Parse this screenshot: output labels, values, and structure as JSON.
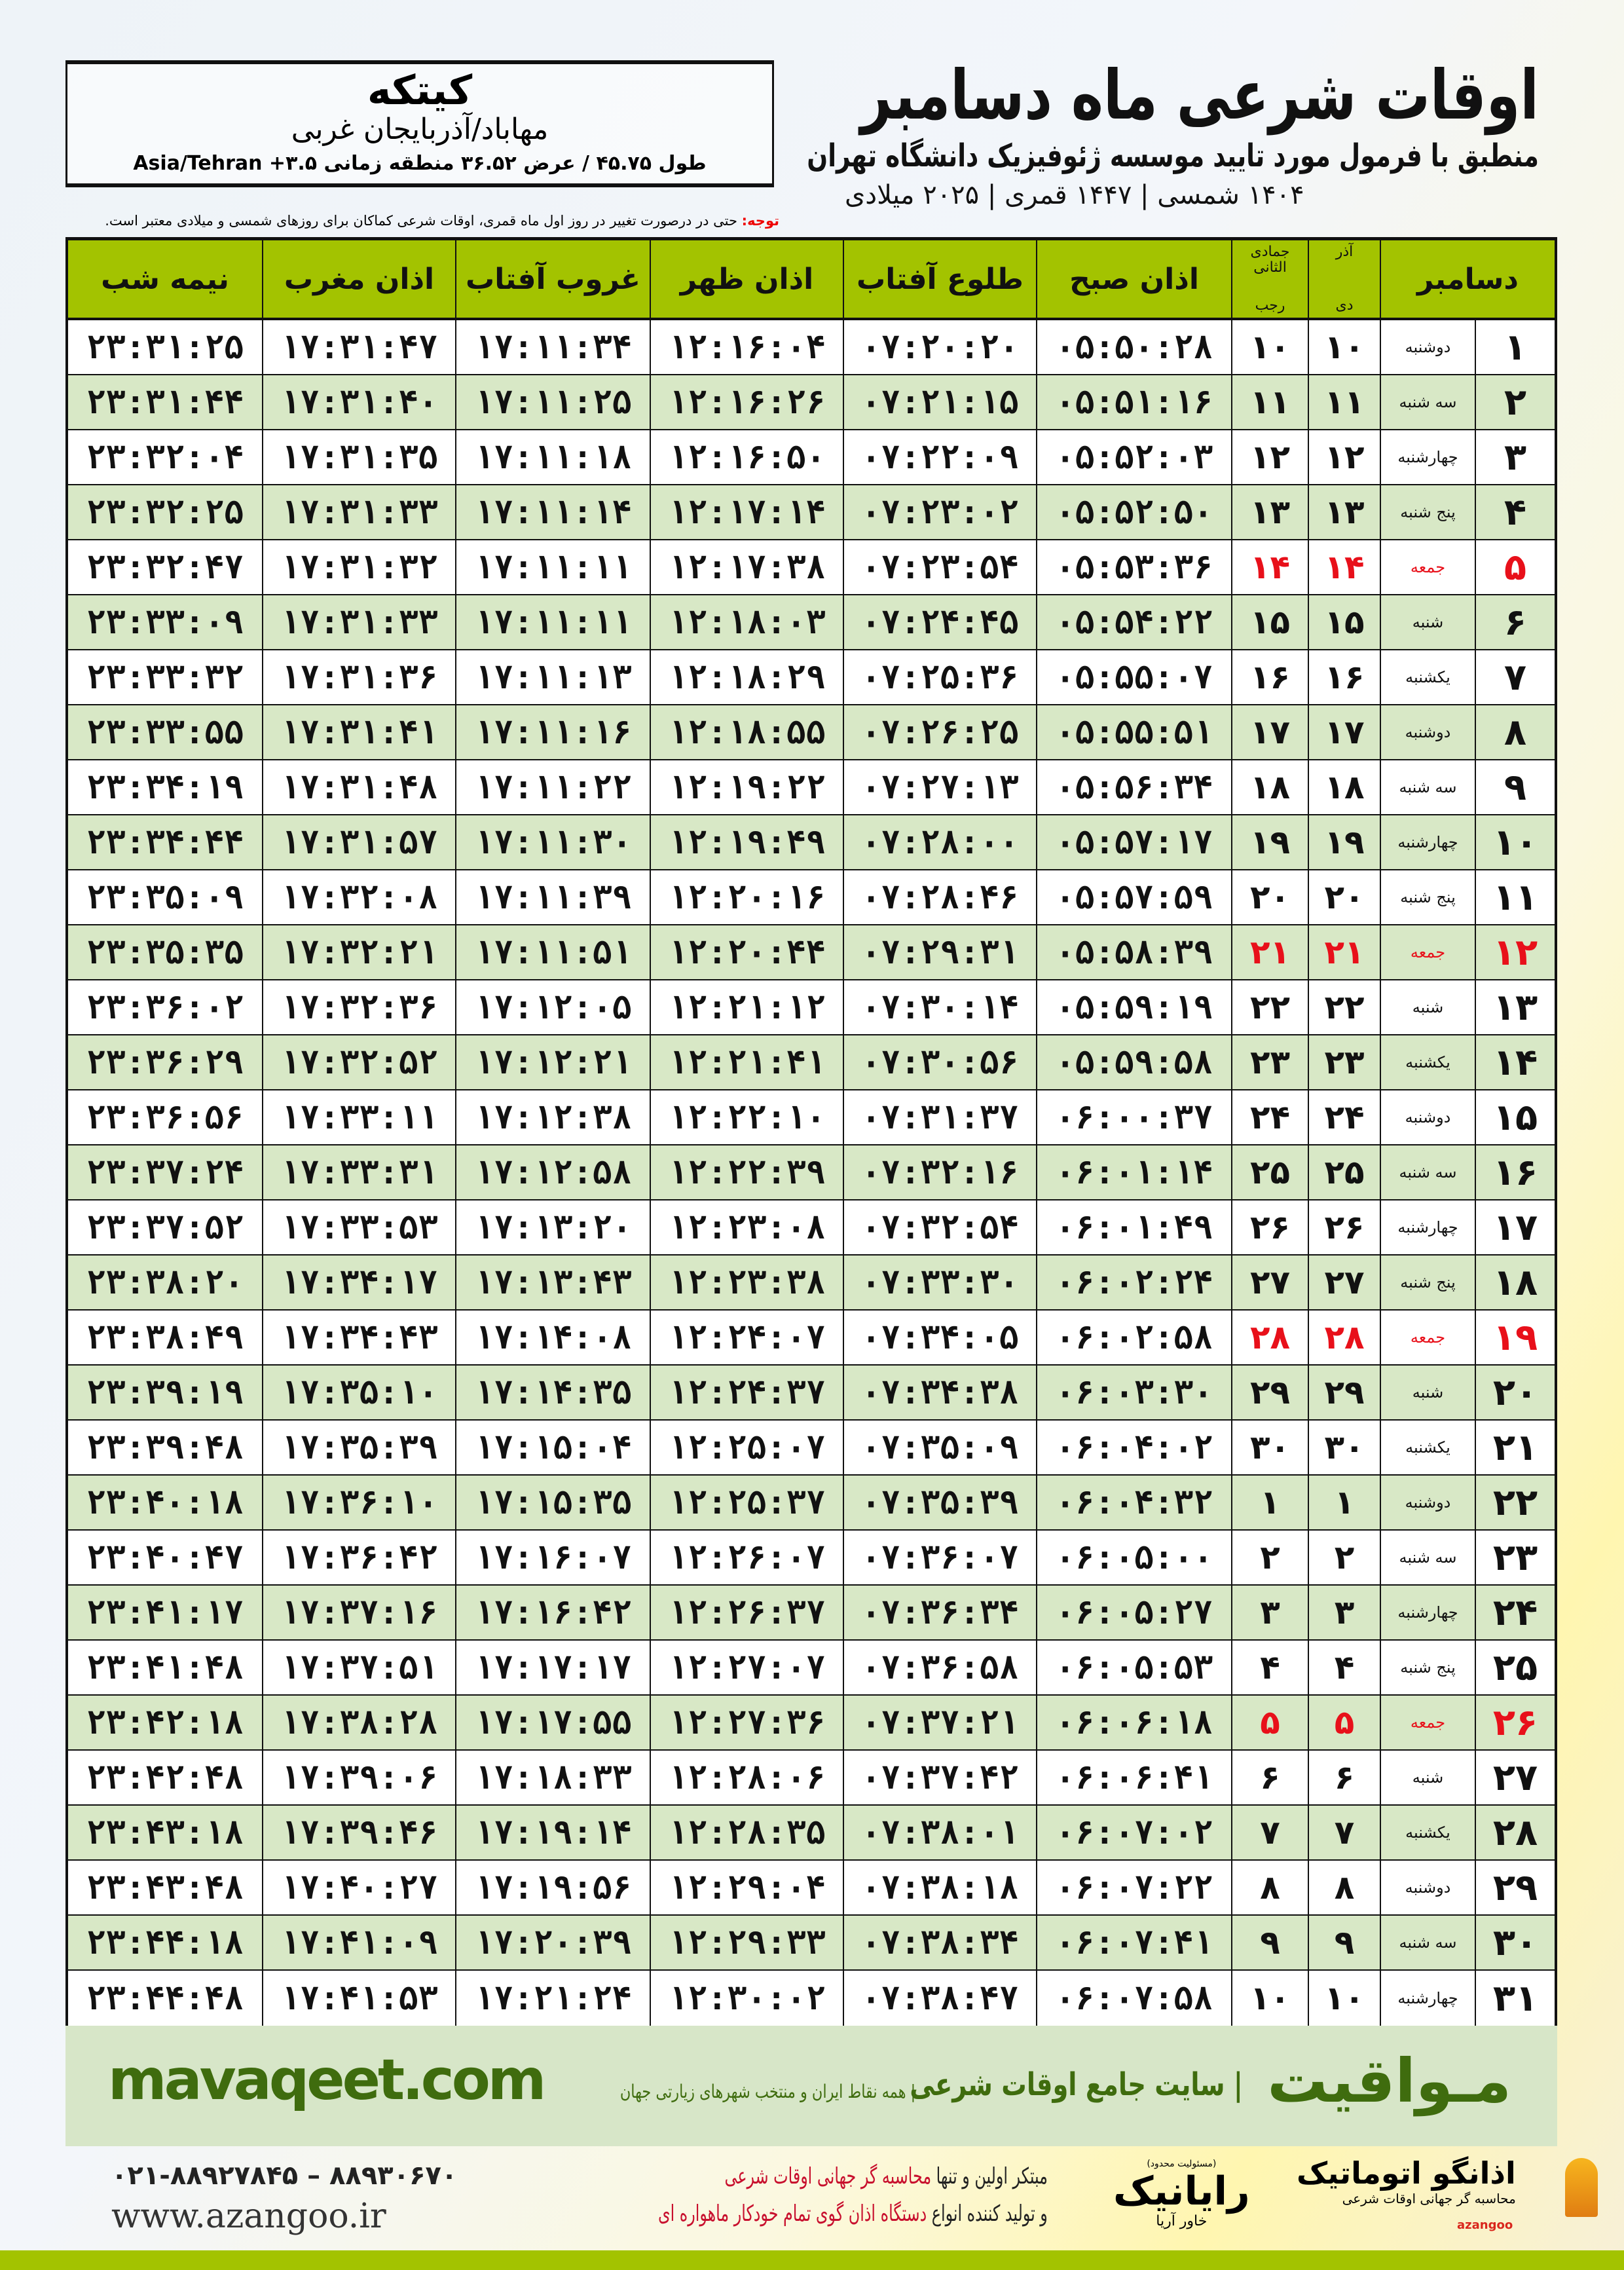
{
  "header": {
    "title": "اوقات شرعی ماه دسامبر",
    "subtitle": "منطبق با فرمول مورد تایید موسسه ژئوفیزیک دانشگاه تهران",
    "dateline": "۱۴۰۴ شمسی | ۱۴۴۷ قمری | ۲۰۲۵ میلادی"
  },
  "location": {
    "city": "کیتکه",
    "province": "مهاباد/آذربایجان غربی",
    "coords": "طول ۴۵.۷۵ / عرض ۳۶.۵۲ منطقه زمانی ۳.۵+ Asia/Tehran"
  },
  "note": {
    "label": "توجه:",
    "text": " حتی در درصورت تغییر در روز اول ماه قمری، اوقات شرعی کماکان برای روزهای شمسی و میلادی معتبر است."
  },
  "table": {
    "headers": {
      "nimeh": "نیمه شب",
      "maghreb": "اذان مغرب",
      "ghoroob": "غروب آفتاب",
      "zohr": "اذان ظهر",
      "tolu": "طلوع آفتاب",
      "sobh": "اذان صبح",
      "hijri_top": "جمادی الثانی",
      "hijri_bottom": "رجب",
      "shamsi_top": "آذر",
      "shamsi_bottom": "دی",
      "month": "دسامبر"
    },
    "red_color": "#e8101a",
    "green_row": "#d8e8c6",
    "header_color": "#a3c300",
    "rows": [
      [
        "۱",
        "دوشنبه",
        "۱۰",
        "۱۰",
        "۰۵:۵۰:۲۸",
        "۰۷:۲۰:۲۰",
        "۱۲:۱۶:۰۴",
        "۱۷:۱۱:۳۴",
        "۱۷:۳۱:۴۷",
        "۲۳:۳۱:۲۵",
        false
      ],
      [
        "۲",
        "سه شنبه",
        "۱۱",
        "۱۱",
        "۰۵:۵۱:۱۶",
        "۰۷:۲۱:۱۵",
        "۱۲:۱۶:۲۶",
        "۱۷:۱۱:۲۵",
        "۱۷:۳۱:۴۰",
        "۲۳:۳۱:۴۴",
        false
      ],
      [
        "۳",
        "چهارشنبه",
        "۱۲",
        "۱۲",
        "۰۵:۵۲:۰۳",
        "۰۷:۲۲:۰۹",
        "۱۲:۱۶:۵۰",
        "۱۷:۱۱:۱۸",
        "۱۷:۳۱:۳۵",
        "۲۳:۳۲:۰۴",
        false
      ],
      [
        "۴",
        "پنج شنبه",
        "۱۳",
        "۱۳",
        "۰۵:۵۲:۵۰",
        "۰۷:۲۳:۰۲",
        "۱۲:۱۷:۱۴",
        "۱۷:۱۱:۱۴",
        "۱۷:۳۱:۳۳",
        "۲۳:۳۲:۲۵",
        false
      ],
      [
        "۵",
        "جمعه",
        "۱۴",
        "۱۴",
        "۰۵:۵۳:۳۶",
        "۰۷:۲۳:۵۴",
        "۱۲:۱۷:۳۸",
        "۱۷:۱۱:۱۱",
        "۱۷:۳۱:۳۲",
        "۲۳:۳۲:۴۷",
        true
      ],
      [
        "۶",
        "شنبه",
        "۱۵",
        "۱۵",
        "۰۵:۵۴:۲۲",
        "۰۷:۲۴:۴۵",
        "۱۲:۱۸:۰۳",
        "۱۷:۱۱:۱۱",
        "۱۷:۳۱:۳۳",
        "۲۳:۳۳:۰۹",
        false
      ],
      [
        "۷",
        "یکشنبه",
        "۱۶",
        "۱۶",
        "۰۵:۵۵:۰۷",
        "۰۷:۲۵:۳۶",
        "۱۲:۱۸:۲۹",
        "۱۷:۱۱:۱۳",
        "۱۷:۳۱:۳۶",
        "۲۳:۳۳:۳۲",
        false
      ],
      [
        "۸",
        "دوشنبه",
        "۱۷",
        "۱۷",
        "۰۵:۵۵:۵۱",
        "۰۷:۲۶:۲۵",
        "۱۲:۱۸:۵۵",
        "۱۷:۱۱:۱۶",
        "۱۷:۳۱:۴۱",
        "۲۳:۳۳:۵۵",
        false
      ],
      [
        "۹",
        "سه شنبه",
        "۱۸",
        "۱۸",
        "۰۵:۵۶:۳۴",
        "۰۷:۲۷:۱۳",
        "۱۲:۱۹:۲۲",
        "۱۷:۱۱:۲۲",
        "۱۷:۳۱:۴۸",
        "۲۳:۳۴:۱۹",
        false
      ],
      [
        "۱۰",
        "چهارشنبه",
        "۱۹",
        "۱۹",
        "۰۵:۵۷:۱۷",
        "۰۷:۲۸:۰۰",
        "۱۲:۱۹:۴۹",
        "۱۷:۱۱:۳۰",
        "۱۷:۳۱:۵۷",
        "۲۳:۳۴:۴۴",
        false
      ],
      [
        "۱۱",
        "پنج شنبه",
        "۲۰",
        "۲۰",
        "۰۵:۵۷:۵۹",
        "۰۷:۲۸:۴۶",
        "۱۲:۲۰:۱۶",
        "۱۷:۱۱:۳۹",
        "۱۷:۳۲:۰۸",
        "۲۳:۳۵:۰۹",
        false
      ],
      [
        "۱۲",
        "جمعه",
        "۲۱",
        "۲۱",
        "۰۵:۵۸:۳۹",
        "۰۷:۲۹:۳۱",
        "۱۲:۲۰:۴۴",
        "۱۷:۱۱:۵۱",
        "۱۷:۳۲:۲۱",
        "۲۳:۳۵:۳۵",
        true
      ],
      [
        "۱۳",
        "شنبه",
        "۲۲",
        "۲۲",
        "۰۵:۵۹:۱۹",
        "۰۷:۳۰:۱۴",
        "۱۲:۲۱:۱۲",
        "۱۷:۱۲:۰۵",
        "۱۷:۳۲:۳۶",
        "۲۳:۳۶:۰۲",
        false
      ],
      [
        "۱۴",
        "یکشنبه",
        "۲۳",
        "۲۳",
        "۰۵:۵۹:۵۸",
        "۰۷:۳۰:۵۶",
        "۱۲:۲۱:۴۱",
        "۱۷:۱۲:۲۱",
        "۱۷:۳۲:۵۲",
        "۲۳:۳۶:۲۹",
        false
      ],
      [
        "۱۵",
        "دوشنبه",
        "۲۴",
        "۲۴",
        "۰۶:۰۰:۳۷",
        "۰۷:۳۱:۳۷",
        "۱۲:۲۲:۱۰",
        "۱۷:۱۲:۳۸",
        "۱۷:۳۳:۱۱",
        "۲۳:۳۶:۵۶",
        false
      ],
      [
        "۱۶",
        "سه شنبه",
        "۲۵",
        "۲۵",
        "۰۶:۰۱:۱۴",
        "۰۷:۳۲:۱۶",
        "۱۲:۲۲:۳۹",
        "۱۷:۱۲:۵۸",
        "۱۷:۳۳:۳۱",
        "۲۳:۳۷:۲۴",
        false
      ],
      [
        "۱۷",
        "چهارشنبه",
        "۲۶",
        "۲۶",
        "۰۶:۰۱:۴۹",
        "۰۷:۳۲:۵۴",
        "۱۲:۲۳:۰۸",
        "۱۷:۱۳:۲۰",
        "۱۷:۳۳:۵۳",
        "۲۳:۳۷:۵۲",
        false
      ],
      [
        "۱۸",
        "پنج شنبه",
        "۲۷",
        "۲۷",
        "۰۶:۰۲:۲۴",
        "۰۷:۳۳:۳۰",
        "۱۲:۲۳:۳۸",
        "۱۷:۱۳:۴۳",
        "۱۷:۳۴:۱۷",
        "۲۳:۳۸:۲۰",
        false
      ],
      [
        "۱۹",
        "جمعه",
        "۲۸",
        "۲۸",
        "۰۶:۰۲:۵۸",
        "۰۷:۳۴:۰۵",
        "۱۲:۲۴:۰۷",
        "۱۷:۱۴:۰۸",
        "۱۷:۳۴:۴۳",
        "۲۳:۳۸:۴۹",
        true
      ],
      [
        "۲۰",
        "شنبه",
        "۲۹",
        "۲۹",
        "۰۶:۰۳:۳۰",
        "۰۷:۳۴:۳۸",
        "۱۲:۲۴:۳۷",
        "۱۷:۱۴:۳۵",
        "۱۷:۳۵:۱۰",
        "۲۳:۳۹:۱۹",
        false
      ],
      [
        "۲۱",
        "یکشنبه",
        "۳۰",
        "۳۰",
        "۰۶:۰۴:۰۲",
        "۰۷:۳۵:۰۹",
        "۱۲:۲۵:۰۷",
        "۱۷:۱۵:۰۴",
        "۱۷:۳۵:۳۹",
        "۲۳:۳۹:۴۸",
        false
      ],
      [
        "۲۲",
        "دوشنبه",
        "۱",
        "۱",
        "۰۶:۰۴:۳۲",
        "۰۷:۳۵:۳۹",
        "۱۲:۲۵:۳۷",
        "۱۷:۱۵:۳۵",
        "۱۷:۳۶:۱۰",
        "۲۳:۴۰:۱۸",
        false
      ],
      [
        "۲۳",
        "سه شنبه",
        "۲",
        "۲",
        "۰۶:۰۵:۰۰",
        "۰۷:۳۶:۰۷",
        "۱۲:۲۶:۰۷",
        "۱۷:۱۶:۰۷",
        "۱۷:۳۶:۴۲",
        "۲۳:۴۰:۴۷",
        false
      ],
      [
        "۲۴",
        "چهارشنبه",
        "۳",
        "۳",
        "۰۶:۰۵:۲۷",
        "۰۷:۳۶:۳۴",
        "۱۲:۲۶:۳۷",
        "۱۷:۱۶:۴۲",
        "۱۷:۳۷:۱۶",
        "۲۳:۴۱:۱۷",
        false
      ],
      [
        "۲۵",
        "پنج شنبه",
        "۴",
        "۴",
        "۰۶:۰۵:۵۳",
        "۰۷:۳۶:۵۸",
        "۱۲:۲۷:۰۷",
        "۱۷:۱۷:۱۷",
        "۱۷:۳۷:۵۱",
        "۲۳:۴۱:۴۸",
        false
      ],
      [
        "۲۶",
        "جمعه",
        "۵",
        "۵",
        "۰۶:۰۶:۱۸",
        "۰۷:۳۷:۲۱",
        "۱۲:۲۷:۳۶",
        "۱۷:۱۷:۵۵",
        "۱۷:۳۸:۲۸",
        "۲۳:۴۲:۱۸",
        true
      ],
      [
        "۲۷",
        "شنبه",
        "۶",
        "۶",
        "۰۶:۰۶:۴۱",
        "۰۷:۳۷:۴۲",
        "۱۲:۲۸:۰۶",
        "۱۷:۱۸:۳۳",
        "۱۷:۳۹:۰۶",
        "۲۳:۴۲:۴۸",
        false
      ],
      [
        "۲۸",
        "یکشنبه",
        "۷",
        "۷",
        "۰۶:۰۷:۰۲",
        "۰۷:۳۸:۰۱",
        "۱۲:۲۸:۳۵",
        "۱۷:۱۹:۱۴",
        "۱۷:۳۹:۴۶",
        "۲۳:۴۳:۱۸",
        false
      ],
      [
        "۲۹",
        "دوشنبه",
        "۸",
        "۸",
        "۰۶:۰۷:۲۲",
        "۰۷:۳۸:۱۸",
        "۱۲:۲۹:۰۴",
        "۱۷:۱۹:۵۶",
        "۱۷:۴۰:۲۷",
        "۲۳:۴۳:۴۸",
        false
      ],
      [
        "۳۰",
        "سه شنبه",
        "۹",
        "۹",
        "۰۶:۰۷:۴۱",
        "۰۷:۳۸:۳۴",
        "۱۲:۲۹:۳۳",
        "۱۷:۲۰:۳۹",
        "۱۷:۴۱:۰۹",
        "۲۳:۴۴:۱۸",
        false
      ],
      [
        "۳۱",
        "چهارشنبه",
        "۱۰",
        "۱۰",
        "۰۶:۰۷:۵۸",
        "۰۷:۳۸:۴۷",
        "۱۲:۳۰:۰۲",
        "۱۷:۲۱:۲۴",
        "۱۷:۴۱:۵۳",
        "۲۳:۴۴:۴۸",
        false
      ]
    ]
  },
  "footer": {
    "brand": "مـواقیت",
    "slogan": "| سایت جامع اوقات شرعی",
    "slogan2": "| همه نقاط ایران و منتخب شهرهای زیارتی جهان",
    "site": "mavaqeet.com",
    "phone": "۰۲۱-۸۸۹۲۷۸۴۵ – ۸۸۹۳۰۶۷۰",
    "web": "www.azangoo.ir",
    "ad1_a": "مبتکر اولین و تنها ",
    "ad1_b": "محاسبه گر جهانی اوقات شرعی",
    "ad2_a": "و تولید کننده انواع ",
    "ad2_b": "دستگاه اذان گوی تمام خودکار ماهواره ای",
    "rayanik_small": "(مسئولیت محدود)",
    "rayanik": "رایانیک",
    "rayanik_sub": "خاور آریا",
    "azangoo": "اذانگو اتوماتیک",
    "azangoo_sub": "محاسبه گر جهانی اوقات شرعی",
    "azangoo_en": "azangoo",
    "accent": "#3f6c0e"
  }
}
